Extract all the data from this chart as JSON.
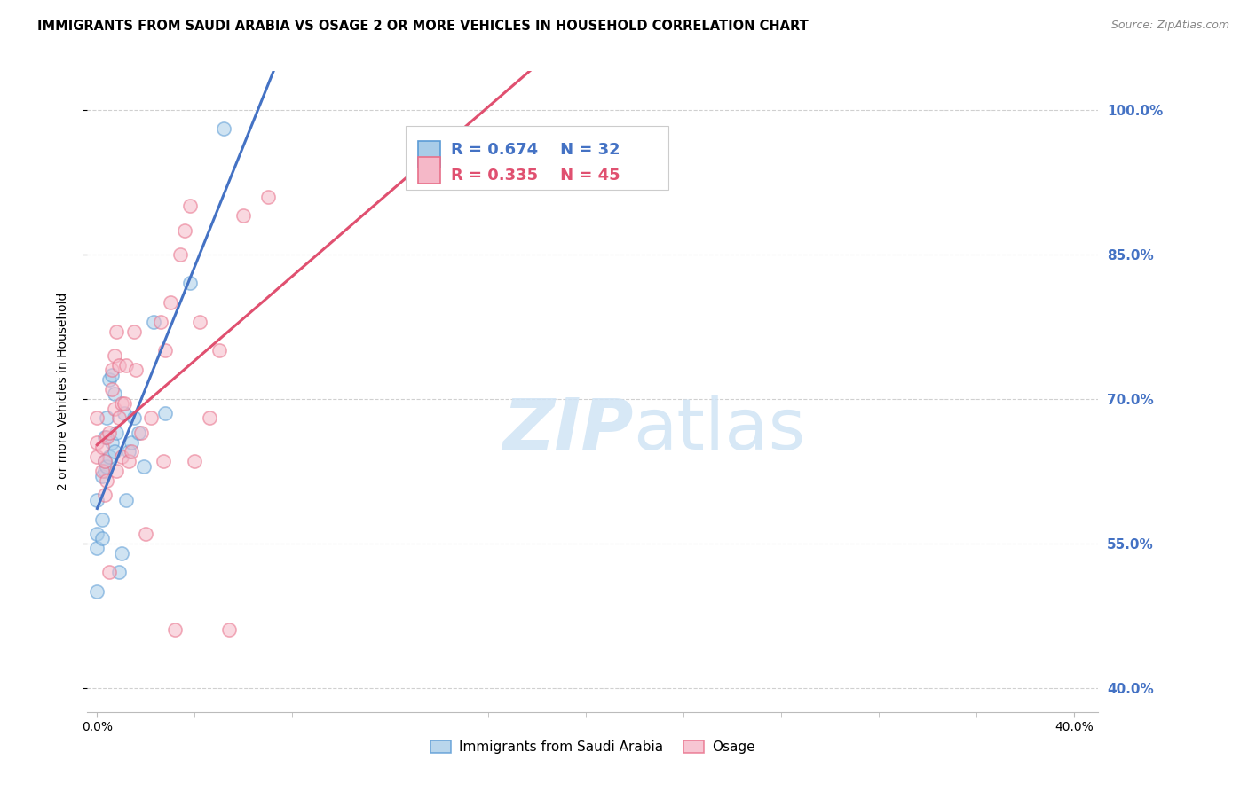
{
  "title": "IMMIGRANTS FROM SAUDI ARABIA VS OSAGE 2 OR MORE VEHICLES IN HOUSEHOLD CORRELATION CHART",
  "source": "Source: ZipAtlas.com",
  "ylabel": "2 or more Vehicles in Household",
  "ytick_labels": [
    "100.0%",
    "85.0%",
    "70.0%",
    "55.0%",
    "40.0%"
  ],
  "ytick_values": [
    1.0,
    0.85,
    0.7,
    0.55,
    0.4
  ],
  "ylim": [
    0.375,
    1.04
  ],
  "xlim": [
    -0.004,
    0.41
  ],
  "xtick_vals": [
    0.0,
    0.4
  ],
  "xtick_labels": [
    "0.0%",
    "40.0%"
  ],
  "legend_blue_R": "R = 0.674",
  "legend_blue_N": "N = 32",
  "legend_pink_R": "R = 0.335",
  "legend_pink_N": "N = 45",
  "blue_scatter_x": [
    0.0,
    0.0,
    0.0,
    0.0,
    0.002,
    0.002,
    0.002,
    0.003,
    0.003,
    0.003,
    0.004,
    0.004,
    0.005,
    0.005,
    0.006,
    0.006,
    0.007,
    0.007,
    0.008,
    0.009,
    0.01,
    0.011,
    0.012,
    0.013,
    0.014,
    0.015,
    0.017,
    0.019,
    0.023,
    0.028,
    0.038,
    0.052
  ],
  "blue_scatter_y": [
    0.56,
    0.595,
    0.545,
    0.5,
    0.555,
    0.575,
    0.62,
    0.625,
    0.635,
    0.66,
    0.63,
    0.68,
    0.64,
    0.72,
    0.655,
    0.725,
    0.705,
    0.645,
    0.665,
    0.52,
    0.54,
    0.685,
    0.595,
    0.645,
    0.655,
    0.68,
    0.665,
    0.63,
    0.78,
    0.685,
    0.82,
    0.98
  ],
  "pink_scatter_x": [
    0.0,
    0.0,
    0.0,
    0.002,
    0.002,
    0.003,
    0.003,
    0.004,
    0.004,
    0.005,
    0.005,
    0.006,
    0.006,
    0.007,
    0.007,
    0.008,
    0.008,
    0.009,
    0.009,
    0.01,
    0.01,
    0.011,
    0.012,
    0.013,
    0.014,
    0.015,
    0.016,
    0.018,
    0.02,
    0.022,
    0.026,
    0.027,
    0.028,
    0.03,
    0.032,
    0.034,
    0.036,
    0.038,
    0.04,
    0.042,
    0.046,
    0.05,
    0.054,
    0.06,
    0.07
  ],
  "pink_scatter_y": [
    0.64,
    0.655,
    0.68,
    0.625,
    0.65,
    0.6,
    0.635,
    0.615,
    0.66,
    0.665,
    0.52,
    0.73,
    0.71,
    0.69,
    0.745,
    0.625,
    0.77,
    0.68,
    0.735,
    0.64,
    0.695,
    0.695,
    0.735,
    0.635,
    0.645,
    0.77,
    0.73,
    0.665,
    0.56,
    0.68,
    0.78,
    0.635,
    0.75,
    0.8,
    0.46,
    0.85,
    0.875,
    0.9,
    0.635,
    0.78,
    0.68,
    0.75,
    0.46,
    0.89,
    0.91
  ],
  "blue_color": "#a8cce8",
  "pink_color": "#f5b8c8",
  "blue_edge_color": "#5b9bd5",
  "pink_edge_color": "#e8708a",
  "blue_line_color": "#4472c4",
  "pink_line_color": "#e05070",
  "watermark_color": "#d0e4f5",
  "background_color": "#ffffff",
  "grid_color": "#d0d0d0",
  "right_tick_color": "#4472c4",
  "scatter_size": 120,
  "scatter_alpha": 0.55,
  "scatter_linewidth": 1.2
}
